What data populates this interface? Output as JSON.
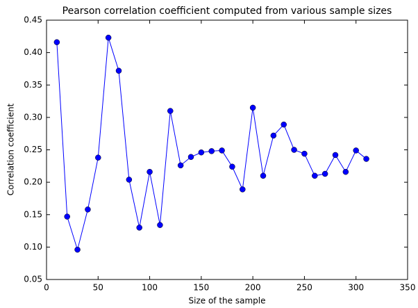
{
  "chart_data": {
    "type": "line",
    "title": "Pearson correlation coefficient computed from various sample sizes",
    "x_label": "Size of the sample",
    "y_label": "Correlation coefficient",
    "x": [
      10,
      20,
      30,
      40,
      50,
      60,
      70,
      80,
      90,
      100,
      110,
      120,
      130,
      140,
      150,
      160,
      170,
      180,
      190,
      200,
      210,
      220,
      230,
      240,
      250,
      260,
      270,
      280,
      290,
      300,
      310
    ],
    "values": [
      0.416,
      0.147,
      0.096,
      0.158,
      0.238,
      0.423,
      0.372,
      0.204,
      0.13,
      0.216,
      0.134,
      0.31,
      0.226,
      0.239,
      0.246,
      0.248,
      0.249,
      0.224,
      0.189,
      0.315,
      0.21,
      0.272,
      0.289,
      0.25,
      0.244,
      0.21,
      0.213,
      0.242,
      0.216,
      0.249,
      0.236
    ],
    "color": "#0000ff",
    "xlim": [
      0,
      350
    ],
    "xticks": [
      0,
      50,
      100,
      150,
      200,
      250,
      300,
      350
    ],
    "ylim": [
      0.05,
      0.45
    ],
    "yticks": [
      0.05,
      {
        "value": 0.1,
        "label": "0.10"
      },
      0.15,
      {
        "value": 0.2,
        "label": "0.20"
      },
      0.25,
      {
        "value": 0.3,
        "label": "0.30"
      },
      0.35,
      {
        "value": 0.4,
        "label": "0.40"
      },
      0.45
    ],
    "grid": false
  }
}
